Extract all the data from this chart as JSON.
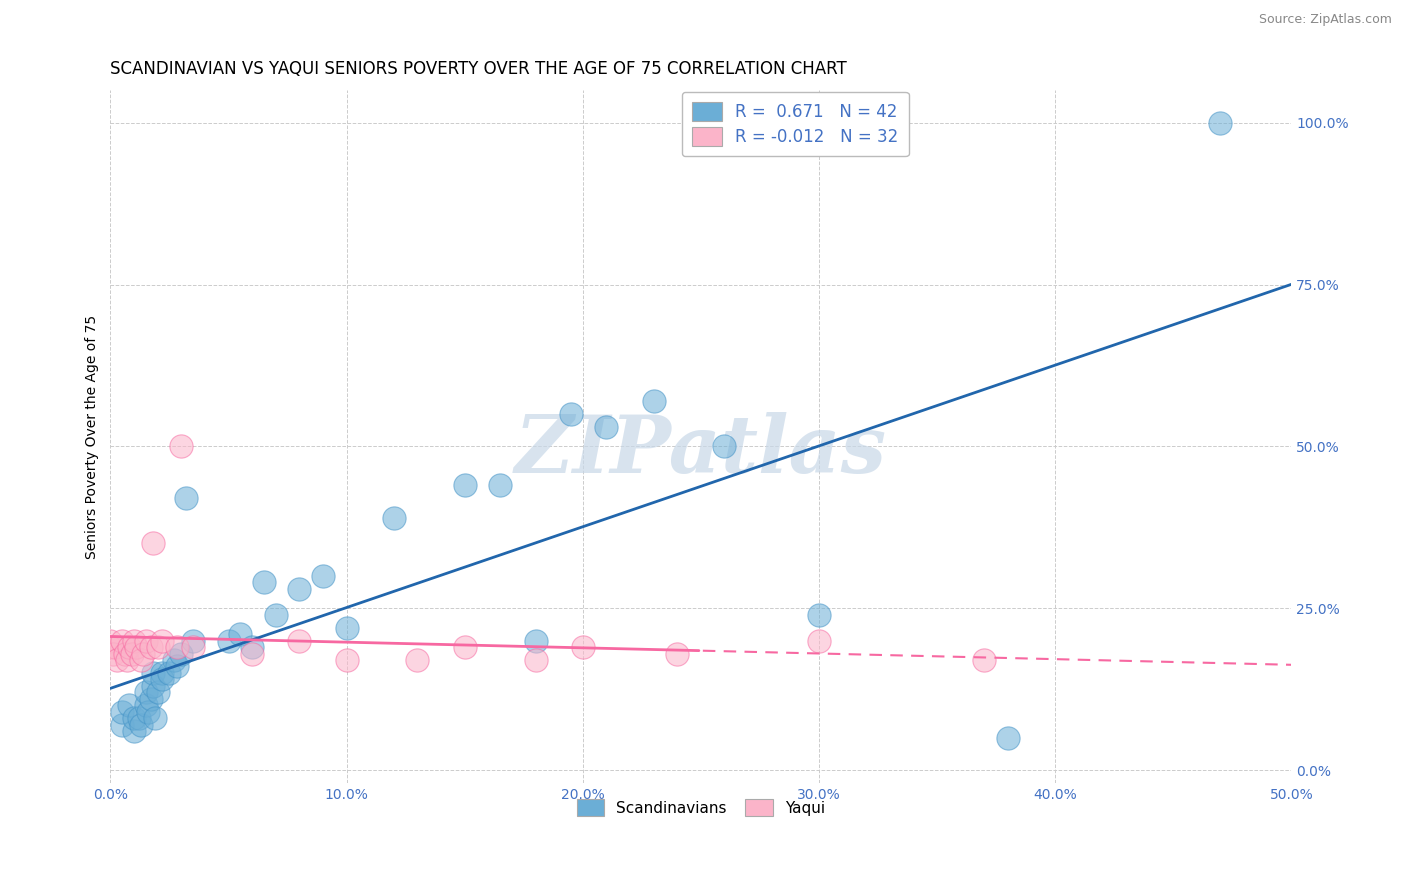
{
  "title": "SCANDINAVIAN VS YAQUI SENIORS POVERTY OVER THE AGE OF 75 CORRELATION CHART",
  "source": "Source: ZipAtlas.com",
  "ylabel": "Seniors Poverty Over the Age of 75",
  "watermark": "ZIPatlas",
  "scandinavian_color": "#6baed6",
  "scandinavian_edge": "#4292c6",
  "yaqui_color": "#fbb4c9",
  "yaqui_edge": "#f768a1",
  "blue_line_color": "#2166ac",
  "pink_line_color": "#f768a1",
  "scandinavian_r": 0.671,
  "scandinavian_n": 42,
  "yaqui_r": -0.012,
  "yaqui_n": 32,
  "xlim": [
    0.0,
    0.5
  ],
  "ylim": [
    -0.02,
    1.05
  ],
  "xticks": [
    0.0,
    0.1,
    0.2,
    0.3,
    0.4,
    0.5
  ],
  "yticks": [
    0.0,
    0.25,
    0.5,
    0.75,
    1.0
  ],
  "xtick_labels": [
    "0.0%",
    "10.0%",
    "20.0%",
    "30.0%",
    "40.0%",
    "50.0%"
  ],
  "ytick_labels": [
    "0.0%",
    "25.0%",
    "50.0%",
    "75.0%",
    "100.0%"
  ],
  "scandinavian_x": [
    0.005,
    0.005,
    0.008,
    0.01,
    0.01,
    0.012,
    0.013,
    0.015,
    0.015,
    0.016,
    0.017,
    0.018,
    0.018,
    0.019,
    0.02,
    0.022,
    0.022,
    0.025,
    0.027,
    0.028,
    0.03,
    0.032,
    0.035,
    0.05,
    0.055,
    0.06,
    0.065,
    0.07,
    0.08,
    0.09,
    0.1,
    0.12,
    0.15,
    0.165,
    0.18,
    0.195,
    0.21,
    0.23,
    0.26,
    0.3,
    0.38,
    0.47
  ],
  "scandinavian_y": [
    0.07,
    0.09,
    0.1,
    0.06,
    0.08,
    0.08,
    0.07,
    0.1,
    0.12,
    0.09,
    0.11,
    0.13,
    0.15,
    0.08,
    0.12,
    0.15,
    0.14,
    0.15,
    0.17,
    0.16,
    0.18,
    0.42,
    0.2,
    0.2,
    0.21,
    0.19,
    0.29,
    0.24,
    0.28,
    0.3,
    0.22,
    0.39,
    0.44,
    0.44,
    0.2,
    0.55,
    0.53,
    0.57,
    0.5,
    0.24,
    0.05,
    1.0
  ],
  "yaqui_x": [
    0.0,
    0.0,
    0.001,
    0.002,
    0.003,
    0.005,
    0.006,
    0.007,
    0.008,
    0.009,
    0.01,
    0.011,
    0.013,
    0.014,
    0.015,
    0.017,
    0.018,
    0.02,
    0.022,
    0.028,
    0.03,
    0.035,
    0.06,
    0.08,
    0.1,
    0.13,
    0.15,
    0.18,
    0.2,
    0.24,
    0.3,
    0.37
  ],
  "yaqui_y": [
    0.19,
    0.2,
    0.18,
    0.19,
    0.17,
    0.2,
    0.18,
    0.17,
    0.19,
    0.18,
    0.2,
    0.19,
    0.17,
    0.18,
    0.2,
    0.19,
    0.35,
    0.19,
    0.2,
    0.19,
    0.5,
    0.19,
    0.18,
    0.2,
    0.17,
    0.17,
    0.19,
    0.17,
    0.19,
    0.18,
    0.2,
    0.17
  ],
  "bg_color": "#ffffff",
  "grid_color": "#cccccc",
  "title_fontsize": 12,
  "axis_label_fontsize": 10,
  "tick_fontsize": 10,
  "source_fontsize": 9,
  "legend_label_r1": "R =  0.671   N = 42",
  "legend_label_r2": "R = -0.012   N = 32"
}
